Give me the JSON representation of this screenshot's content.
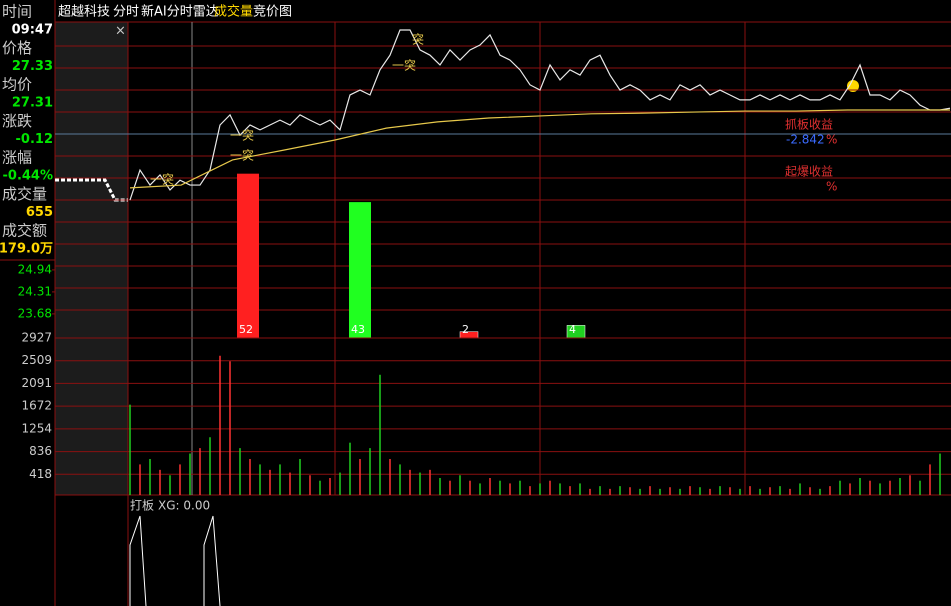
{
  "header": {
    "stock": "超越科技",
    "tabs": [
      "分时",
      "新AI分时雷达",
      "成交量",
      "竞价图"
    ],
    "close": "×"
  },
  "info_panel": {
    "rows": [
      {
        "label": "时间",
        "value": "09:47"
      },
      {
        "label": "价格",
        "value": "27.33"
      },
      {
        "label": "均价",
        "value": "27.31"
      },
      {
        "label": "涨跌",
        "value": "-0.12"
      },
      {
        "label": "涨幅",
        "value": "-0.44%"
      },
      {
        "label": "成交量",
        "value": "655"
      },
      {
        "label": "成交额",
        "value": "179.0万"
      }
    ]
  },
  "chart_data": [
    {
      "type": "line",
      "ylim": [
        22.99,
        32.04
      ],
      "yticks": [
        24.94,
        24.31,
        23.68
      ],
      "series": [
        {
          "color": "#e8e8e8",
          "values": [
            26.94,
            27.8,
            27.37,
            27.66,
            27.23,
            27.51,
            27.37,
            27.37,
            27.8,
            29.09,
            29.38,
            28.8,
            29.09,
            28.95,
            29.09,
            29.23,
            29.09,
            29.38,
            29.23,
            29.09,
            29.23,
            28.95,
            29.95,
            30.09,
            29.95,
            30.67,
            31.09,
            31.81,
            31.81,
            31.24,
            31.09,
            30.81,
            31.24,
            30.95,
            31.24,
            31.38,
            31.67,
            31.09,
            30.95,
            30.67,
            30.24,
            30.09,
            30.81,
            30.38,
            30.67,
            30.52,
            30.95,
            31.09,
            30.52,
            30.09,
            30.24,
            30.09,
            29.81,
            29.95,
            29.81,
            30.24,
            30.09,
            30.24,
            29.95,
            30.09,
            29.95,
            29.81,
            29.81,
            29.95,
            29.81,
            29.95,
            29.81,
            29.95,
            29.81,
            29.81,
            29.95,
            29.81,
            30.24,
            30.81,
            29.95,
            29.95,
            29.81,
            30.09,
            29.95,
            29.66,
            29.52,
            29.52,
            29.57
          ]
        },
        {
          "color": "#e6c84b",
          "values": [
            27.29,
            27.37,
            28.09,
            28.37,
            28.66,
            29.0,
            29.18,
            29.29,
            29.35,
            29.41,
            29.43,
            29.46,
            29.49,
            29.49,
            29.52,
            29.52,
            29.52
          ]
        }
      ],
      "annotations": [
        "一突",
        "一突",
        "一突",
        "一突",
        "突",
        "抓板收益",
        "-2.842",
        "%",
        "起爆收益",
        "%"
      ]
    },
    {
      "type": "bar",
      "ylim": [
        0,
        100
      ],
      "values": [
        52,
        43,
        2,
        4
      ],
      "colors": [
        "#ff2020",
        "#20ff20",
        "#ff2020",
        "#20d020"
      ]
    },
    {
      "type": "bar",
      "ylim": [
        0,
        2927
      ],
      "yticks": [
        2927,
        2509,
        2091,
        1672,
        1254,
        836,
        418
      ],
      "values": [
        1700,
        600,
        700,
        500,
        400,
        600,
        800,
        900,
        1100,
        2600,
        2500,
        900,
        700,
        600,
        500,
        600,
        450,
        700,
        400,
        300,
        350,
        450,
        1000,
        700,
        900,
        2250,
        700,
        600,
        500,
        450,
        500,
        350,
        300,
        400,
        300,
        250,
        350,
        300,
        250,
        300,
        200,
        250,
        300,
        250,
        200,
        250,
        150,
        200,
        150,
        200,
        180,
        150,
        200,
        150,
        180,
        150,
        200,
        180,
        150,
        200,
        180,
        150,
        200,
        150,
        180,
        200,
        150,
        250,
        180,
        150,
        200,
        300,
        250,
        350,
        300,
        250,
        300,
        350,
        400,
        300,
        600,
        800
      ],
      "colors": [
        "g",
        "r",
        "g",
        "r",
        "g",
        "r",
        "g",
        "r",
        "g",
        "r",
        "r",
        "g",
        "r",
        "g",
        "r",
        "g",
        "r",
        "g",
        "r",
        "g",
        "r",
        "g",
        "g",
        "r",
        "g",
        "g",
        "r",
        "g",
        "r",
        "g",
        "r",
        "g",
        "r",
        "g",
        "r",
        "g",
        "r",
        "g",
        "r",
        "g",
        "r",
        "g",
        "r",
        "g",
        "r",
        "g",
        "r",
        "g",
        "r",
        "g",
        "r",
        "g",
        "r",
        "g",
        "r",
        "g",
        "r",
        "g",
        "r",
        "g",
        "r",
        "g",
        "r",
        "g",
        "r",
        "g",
        "r",
        "g",
        "r",
        "g",
        "r",
        "g",
        "r",
        "g",
        "r",
        "g",
        "r",
        "g",
        "r",
        "g",
        "r",
        "g"
      ]
    }
  ],
  "indicator_panel": {
    "title": "打板",
    "formula": "XG: 0.00"
  }
}
